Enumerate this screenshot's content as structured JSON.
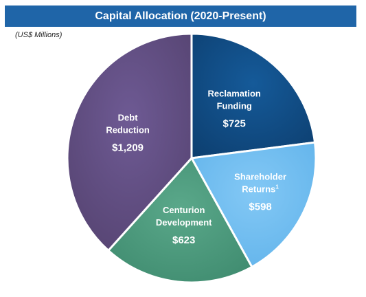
{
  "header": {
    "title": "Capital Allocation (2020-Present)",
    "units": "(US$ Millions)"
  },
  "chart_data": {
    "type": "pie",
    "title": "Capital Allocation (2020-Present)",
    "units": "(US$ Millions)",
    "slices": [
      {
        "name_lines": [
          "Reclamation",
          "Funding"
        ],
        "footnote": "",
        "value": 725,
        "value_label": "$725",
        "color": "#155a99",
        "color_dark": "#0d3f70"
      },
      {
        "name_lines": [
          "Shareholder",
          "Returns"
        ],
        "footnote": "1",
        "value": 598,
        "value_label": "$598",
        "color": "#83c8f5",
        "color_dark": "#5fb2ea"
      },
      {
        "name_lines": [
          "Centurion",
          "Development"
        ],
        "footnote": "",
        "value": 623,
        "value_label": "$623",
        "color": "#5aa88a",
        "color_dark": "#3e8a6e"
      },
      {
        "name_lines": [
          "Debt",
          "Reduction"
        ],
        "footnote": "",
        "value": 1209,
        "value_label": "$1,209",
        "color": "#6e5a94",
        "color_dark": "#54426f"
      }
    ]
  }
}
